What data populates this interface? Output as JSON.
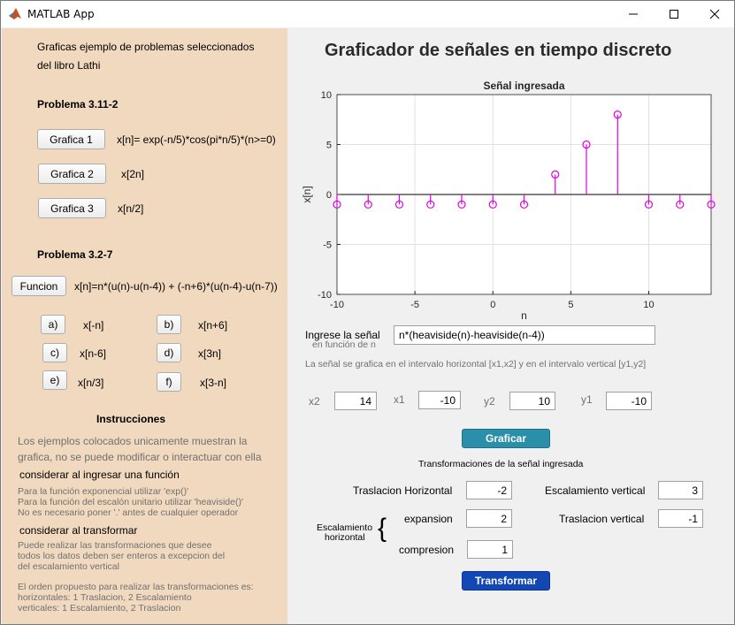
{
  "window": {
    "title": "MATLAB App",
    "minimize": "—",
    "maximize": "☐",
    "close": "✕"
  },
  "left": {
    "intro1": "Graficas ejemplo de problemas seleccionados",
    "intro2": "del libro Lathi",
    "problem1": "Problema 3.11-2",
    "g1_btn": "Grafica 1",
    "g1_expr": "x[n]= exp(-n/5)*cos(pi*n/5)*(n>=0)",
    "g2_btn": "Grafica 2",
    "g2_expr": "x[2n]",
    "g3_btn": "Grafica 3",
    "g3_expr": "x[n/2]",
    "problem2": "Problema 3.2-7",
    "func_btn": "Funcion",
    "func_expr": "x[n]=n*(u(n)-u(n-4)) + (-n+6)*(u(n-4)-u(n-7))",
    "opts": [
      {
        "btn": "a)",
        "expr": "x[-n]"
      },
      {
        "btn": "b)",
        "expr": "x[n+6]"
      },
      {
        "btn": "c)",
        "expr": "x[n-6]"
      },
      {
        "btn": "d)",
        "expr": "x[3n]"
      },
      {
        "btn": "e)",
        "expr": "x[n/3]"
      },
      {
        "btn": "f)",
        "expr": "x[3-n]"
      }
    ],
    "instr_title": "Instrucciones",
    "instr1": "Los ejemplos  colocados unicamente muestran la",
    "instr2": "grafica, no se puede modificar  o interactuar con ella",
    "consider_in": "considerar al ingresar una función",
    "in1": "Para la función exponencial utilizar 'exp()'",
    "in2": "Para la función del escalón unitario utilizar 'heaviside()'",
    "in3": "No es necesario poner '.' antes de cualquier operador",
    "consider_tr": "considerar al transformar",
    "tr1": "Puede realizar las transformaciones que desee",
    "tr2": "todos los datos deben ser enteros a excepcion del",
    "tr3": "del escalamiento vertical",
    "ord1": "El orden propuesto para realizar  las  transformaciones es:",
    "ord2": "horizontales: 1 Traslacion, 2 Escalamiento",
    "ord3": "verticales: 1 Escalamiento, 2 Traslacion"
  },
  "right": {
    "heading": "Graficador de señales en tiempo discreto",
    "input_label": "Ingrese la señal",
    "input_sub": "en función de n",
    "input_value": "n*(heaviside(n)-heaviside(n-4))",
    "interval_note": "La señal se grafica en el intervalo horizontal [x1,x2] y en el intervalo vertical [y1,y2]",
    "x2_label": "x2",
    "x2_value": "14",
    "x1_label": "x1",
    "x1_value": "-10",
    "y2_label": "y2",
    "y2_value": "10",
    "y1_label": "y1",
    "y1_value": "-10",
    "graficar_btn": "Graficar",
    "trans_title": "Transformaciones de  la señal ingresada",
    "tras_h_label": "Traslacion Horizontal",
    "tras_h_value": "-2",
    "esc_v_label": "Escalamiento vertical",
    "esc_v_value": "3",
    "esc_h_label1": "Escalamiento",
    "esc_h_label2": "horizontal",
    "brace": "{",
    "exp_label": "expansion",
    "exp_value": "2",
    "tras_v_label": "Traslacion vertical",
    "tras_v_value": "-1",
    "comp_label": "compresion",
    "comp_value": "1",
    "transformar_btn": "Transformar",
    "colors": {
      "graficar": "#2a8fa8",
      "transformar": "#1347b4",
      "stem": "#e000e0"
    }
  },
  "chart_data": {
    "type": "scatter",
    "style": "stem",
    "title": "Señal ingresada",
    "xlabel": "n",
    "ylabel": "x[n]",
    "xlim": [
      -10,
      14
    ],
    "ylim": [
      -10,
      10
    ],
    "xticks": [
      -10,
      -5,
      0,
      5,
      10
    ],
    "yticks": [
      -10,
      -5,
      0,
      5,
      10
    ],
    "grid": true,
    "x": [
      -10,
      -8,
      -6,
      -4,
      -2,
      0,
      2,
      4,
      6,
      8,
      10,
      12,
      14
    ],
    "y": [
      -1,
      -1,
      -1,
      -1,
      -1,
      -1,
      -1,
      2,
      5,
      8,
      -1,
      -1,
      -1
    ],
    "color": "#e000e0"
  }
}
